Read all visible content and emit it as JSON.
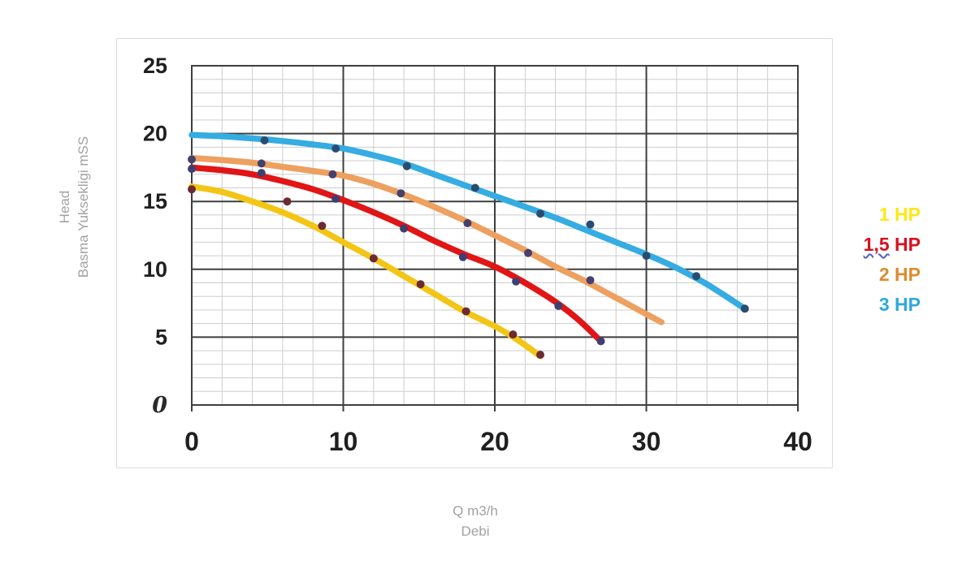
{
  "chart_data": {
    "type": "line",
    "title": "",
    "xlabel": "Q m3/h Debi",
    "ylabel": "Head Basma Yuksekligi mSS",
    "xlim": [
      0,
      40
    ],
    "ylim": [
      0,
      25
    ],
    "grid": "major dark lines every 10 (x) / 5 (y), minor light lines every 2 (x) / 1 (y)",
    "legend_position": "right-outside",
    "x_axis": {
      "title_line1": "Q m3/h",
      "title_line2": "Debi",
      "min": 0,
      "max": 40,
      "major_step": 10,
      "minor_step": 2,
      "tick_labels": [
        "0",
        "10",
        "20",
        "30",
        "40"
      ]
    },
    "y_axis": {
      "title_line1": "Head",
      "title_line2": "Basma Yuksekligi mSS",
      "min": 0,
      "max": 25,
      "major_step": 5,
      "minor_step": 1,
      "tick_labels": [
        "25",
        "20",
        "15",
        "10",
        "5",
        "0"
      ]
    },
    "colors": {
      "background": "#ffffff",
      "card_border": "#dcdcdc",
      "grid_minor": "#cdcdcd",
      "grid_major": "#3e3e3e",
      "tick_text": "#1f1f1f",
      "axis_title_text": "#a2a2a6",
      "spellcheck_underline": "#4d5fc4"
    },
    "series": [
      {
        "name": "1 HP",
        "color": "#F3C515",
        "legend_color": "#FFE715",
        "marker_color": "#6C2A31",
        "points": [
          [
            0,
            16.1
          ],
          [
            2,
            15.7
          ],
          [
            4,
            15.0
          ],
          [
            6,
            14.2
          ],
          [
            8,
            13.2
          ],
          [
            10,
            12.0
          ],
          [
            12,
            10.8
          ],
          [
            14,
            9.5
          ],
          [
            16,
            8.2
          ],
          [
            18,
            6.9
          ],
          [
            20,
            5.8
          ],
          [
            21.5,
            4.8
          ],
          [
            23,
            3.6
          ]
        ],
        "markers": [
          [
            0,
            15.9
          ],
          [
            6.3,
            15.0
          ],
          [
            8.6,
            13.2
          ],
          [
            12,
            10.8
          ],
          [
            15.1,
            8.9
          ],
          [
            18.1,
            6.9
          ],
          [
            21.2,
            5.2
          ],
          [
            23,
            3.7
          ]
        ]
      },
      {
        "name": "1,5 HP",
        "misspell_underline": "1,5",
        "color": "#E11515",
        "legend_color": "#D90F1E",
        "marker_color": "#3D4070",
        "points": [
          [
            0,
            17.5
          ],
          [
            2,
            17.3
          ],
          [
            4,
            17.0
          ],
          [
            6,
            16.5
          ],
          [
            8,
            15.9
          ],
          [
            10,
            15.1
          ],
          [
            12,
            14.2
          ],
          [
            14,
            13.2
          ],
          [
            16,
            12.1
          ],
          [
            18,
            11.1
          ],
          [
            20,
            10.2
          ],
          [
            22,
            9.0
          ],
          [
            24,
            7.6
          ],
          [
            25.5,
            6.3
          ],
          [
            27,
            4.7
          ]
        ],
        "markers": [
          [
            0,
            17.4
          ],
          [
            4.6,
            17.1
          ],
          [
            9.5,
            15.2
          ],
          [
            14,
            13.0
          ],
          [
            17.9,
            10.9
          ],
          [
            21.4,
            9.1
          ],
          [
            24.2,
            7.3
          ],
          [
            27,
            4.7
          ]
        ]
      },
      {
        "name": "2 HP",
        "color": "#EDA05F",
        "legend_color": "#DE8B2D",
        "marker_color": "#47406B",
        "points": [
          [
            0,
            18.2
          ],
          [
            2,
            18.05
          ],
          [
            4,
            17.85
          ],
          [
            6,
            17.55
          ],
          [
            8,
            17.25
          ],
          [
            10,
            16.9
          ],
          [
            12,
            16.3
          ],
          [
            14,
            15.5
          ],
          [
            16,
            14.6
          ],
          [
            18,
            13.6
          ],
          [
            20,
            12.5
          ],
          [
            22,
            11.4
          ],
          [
            24,
            10.2
          ],
          [
            26,
            9.1
          ],
          [
            28,
            7.9
          ],
          [
            29.5,
            7.0
          ],
          [
            31,
            6.1
          ]
        ],
        "markers": [
          [
            0,
            18.1
          ],
          [
            4.6,
            17.8
          ],
          [
            9.3,
            17.0
          ],
          [
            13.8,
            15.6
          ],
          [
            18.2,
            13.4
          ],
          [
            22.2,
            11.2
          ],
          [
            26.3,
            9.2
          ]
        ]
      },
      {
        "name": "3 HP",
        "color": "#35ACE2",
        "legend_color": "#2FA8DF",
        "marker_color": "#2B4C71",
        "points": [
          [
            0,
            19.9
          ],
          [
            2,
            19.8
          ],
          [
            4,
            19.65
          ],
          [
            6,
            19.45
          ],
          [
            8,
            19.2
          ],
          [
            10,
            18.9
          ],
          [
            12,
            18.4
          ],
          [
            14,
            17.8
          ],
          [
            16,
            17.0
          ],
          [
            18,
            16.2
          ],
          [
            20,
            15.4
          ],
          [
            22,
            14.6
          ],
          [
            24,
            13.8
          ],
          [
            26,
            12.9
          ],
          [
            28,
            12.0
          ],
          [
            30,
            11.1
          ],
          [
            32,
            10.1
          ],
          [
            34,
            8.9
          ],
          [
            36.5,
            7.1
          ]
        ],
        "markers": [
          [
            4.8,
            19.5
          ],
          [
            9.5,
            18.9
          ],
          [
            14.2,
            17.6
          ],
          [
            18.7,
            16.0
          ],
          [
            23,
            14.1
          ],
          [
            26.3,
            13.3
          ],
          [
            30,
            11.0
          ],
          [
            33.3,
            9.5
          ],
          [
            36.5,
            7.1
          ]
        ]
      }
    ]
  }
}
